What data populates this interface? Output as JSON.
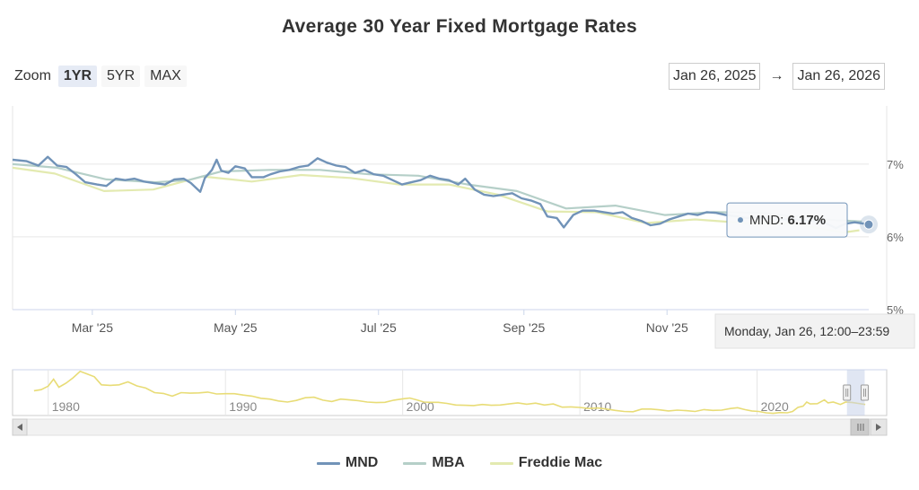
{
  "chart_data": {
    "type": "line",
    "title": "Average 30 Year Fixed Mortgage Rates",
    "zoom": {
      "label": "Zoom",
      "options": [
        "1YR",
        "5YR",
        "MAX"
      ],
      "selected": "1YR"
    },
    "range": {
      "from": "Jan 26, 2025",
      "arrow": "→",
      "to": "Jan 26, 2026"
    },
    "x_range": [
      "2025-01-26",
      "2026-01-26"
    ],
    "x_tick_labels": [
      "Mar '25",
      "May '25",
      "Jul '25",
      "Sep '25",
      "Nov '25"
    ],
    "x_ticks": [
      "2025-03-01",
      "2025-05-01",
      "2025-07-01",
      "2025-09-01",
      "2025-11-01"
    ],
    "ylim": [
      5,
      7.8
    ],
    "y_ticks": [
      5,
      6,
      7
    ],
    "y_tick_labels": [
      "5%",
      "6%",
      "7%"
    ],
    "series": [
      {
        "name": "MND",
        "color": "#7193b8",
        "points": [
          [
            "2025-01-26",
            7.06
          ],
          [
            "2025-02-01",
            7.04
          ],
          [
            "2025-02-06",
            6.98
          ],
          [
            "2025-02-10",
            7.1
          ],
          [
            "2025-02-14",
            6.98
          ],
          [
            "2025-02-18",
            6.96
          ],
          [
            "2025-02-22",
            6.86
          ],
          [
            "2025-02-26",
            6.75
          ],
          [
            "2025-03-03",
            6.72
          ],
          [
            "2025-03-07",
            6.7
          ],
          [
            "2025-03-11",
            6.8
          ],
          [
            "2025-03-15",
            6.78
          ],
          [
            "2025-03-19",
            6.8
          ],
          [
            "2025-03-23",
            6.76
          ],
          [
            "2025-03-27",
            6.74
          ],
          [
            "2025-04-01",
            6.72
          ],
          [
            "2025-04-05",
            6.79
          ],
          [
            "2025-04-09",
            6.8
          ],
          [
            "2025-04-12",
            6.74
          ],
          [
            "2025-04-16",
            6.62
          ],
          [
            "2025-04-18",
            6.81
          ],
          [
            "2025-04-21",
            6.92
          ],
          [
            "2025-04-23",
            7.06
          ],
          [
            "2025-04-25",
            6.91
          ],
          [
            "2025-04-28",
            6.88
          ],
          [
            "2025-05-01",
            6.97
          ],
          [
            "2025-05-05",
            6.94
          ],
          [
            "2025-05-08",
            6.82
          ],
          [
            "2025-05-13",
            6.82
          ],
          [
            "2025-05-16",
            6.86
          ],
          [
            "2025-05-20",
            6.9
          ],
          [
            "2025-05-24",
            6.92
          ],
          [
            "2025-05-28",
            6.96
          ],
          [
            "2025-06-01",
            6.98
          ],
          [
            "2025-06-05",
            7.08
          ],
          [
            "2025-06-09",
            7.02
          ],
          [
            "2025-06-13",
            6.98
          ],
          [
            "2025-06-17",
            6.96
          ],
          [
            "2025-06-21",
            6.88
          ],
          [
            "2025-06-25",
            6.92
          ],
          [
            "2025-06-29",
            6.86
          ],
          [
            "2025-07-03",
            6.84
          ],
          [
            "2025-07-07",
            6.78
          ],
          [
            "2025-07-11",
            6.72
          ],
          [
            "2025-07-15",
            6.75
          ],
          [
            "2025-07-19",
            6.78
          ],
          [
            "2025-07-23",
            6.84
          ],
          [
            "2025-07-27",
            6.8
          ],
          [
            "2025-07-31",
            6.78
          ],
          [
            "2025-08-04",
            6.72
          ],
          [
            "2025-08-07",
            6.8
          ],
          [
            "2025-08-11",
            6.65
          ],
          [
            "2025-08-15",
            6.58
          ],
          [
            "2025-08-19",
            6.56
          ],
          [
            "2025-08-23",
            6.58
          ],
          [
            "2025-08-27",
            6.6
          ],
          [
            "2025-08-31",
            6.53
          ],
          [
            "2025-09-04",
            6.5
          ],
          [
            "2025-09-08",
            6.45
          ],
          [
            "2025-09-11",
            6.28
          ],
          [
            "2025-09-15",
            6.26
          ],
          [
            "2025-09-18",
            6.13
          ],
          [
            "2025-09-22",
            6.3
          ],
          [
            "2025-09-26",
            6.36
          ],
          [
            "2025-10-01",
            6.36
          ],
          [
            "2025-10-05",
            6.34
          ],
          [
            "2025-10-09",
            6.32
          ],
          [
            "2025-10-13",
            6.34
          ],
          [
            "2025-10-17",
            6.26
          ],
          [
            "2025-10-21",
            6.22
          ],
          [
            "2025-10-25",
            6.16
          ],
          [
            "2025-10-29",
            6.18
          ],
          [
            "2025-11-02",
            6.24
          ],
          [
            "2025-11-06",
            6.28
          ],
          [
            "2025-11-10",
            6.32
          ],
          [
            "2025-11-14",
            6.3
          ],
          [
            "2025-11-18",
            6.34
          ],
          [
            "2025-11-22",
            6.33
          ],
          [
            "2025-11-26",
            6.3
          ],
          [
            "2025-12-01",
            6.28
          ],
          [
            "2025-12-05",
            6.26
          ],
          [
            "2025-12-10",
            6.27
          ],
          [
            "2025-12-15",
            6.25
          ],
          [
            "2025-12-20",
            6.24
          ],
          [
            "2025-12-26",
            6.24
          ],
          [
            "2026-01-01",
            6.22
          ],
          [
            "2026-01-07",
            6.2
          ],
          [
            "2026-01-12",
            6.12
          ],
          [
            "2026-01-16",
            6.18
          ],
          [
            "2026-01-20",
            6.2
          ],
          [
            "2026-01-26",
            6.17
          ]
        ]
      },
      {
        "name": "MBA",
        "color": "#b5cfc8",
        "points": [
          [
            "2025-01-26",
            7.0
          ],
          [
            "2025-02-14",
            6.95
          ],
          [
            "2025-03-07",
            6.79
          ],
          [
            "2025-03-28",
            6.75
          ],
          [
            "2025-04-11",
            6.78
          ],
          [
            "2025-04-25",
            6.9
          ],
          [
            "2025-05-16",
            6.92
          ],
          [
            "2025-06-06",
            6.92
          ],
          [
            "2025-06-27",
            6.86
          ],
          [
            "2025-07-18",
            6.84
          ],
          [
            "2025-08-08",
            6.72
          ],
          [
            "2025-08-29",
            6.63
          ],
          [
            "2025-09-19",
            6.39
          ],
          [
            "2025-10-10",
            6.43
          ],
          [
            "2025-10-31",
            6.3
          ],
          [
            "2025-11-21",
            6.34
          ],
          [
            "2025-12-12",
            6.33
          ],
          [
            "2026-01-02",
            6.25
          ],
          [
            "2026-01-23",
            6.21
          ]
        ]
      },
      {
        "name": "Freddie Mac",
        "color": "#e3eab0",
        "points": [
          [
            "2025-01-26",
            6.95
          ],
          [
            "2025-02-13",
            6.87
          ],
          [
            "2025-03-06",
            6.63
          ],
          [
            "2025-03-27",
            6.65
          ],
          [
            "2025-04-17",
            6.83
          ],
          [
            "2025-05-08",
            6.76
          ],
          [
            "2025-05-29",
            6.85
          ],
          [
            "2025-06-19",
            6.81
          ],
          [
            "2025-07-10",
            6.72
          ],
          [
            "2025-07-31",
            6.72
          ],
          [
            "2025-08-21",
            6.58
          ],
          [
            "2025-09-11",
            6.35
          ],
          [
            "2025-10-02",
            6.34
          ],
          [
            "2025-10-23",
            6.19
          ],
          [
            "2025-11-13",
            6.24
          ],
          [
            "2025-12-04",
            6.19
          ],
          [
            "2025-12-25",
            6.18
          ],
          [
            "2026-01-15",
            6.06
          ],
          [
            "2026-01-22",
            6.09
          ]
        ]
      }
    ],
    "tooltip": {
      "series": "MND",
      "label": "MND: ",
      "value": "6.17%"
    },
    "crosshair_label": "Monday, Jan 26, 12:00–23:59",
    "navigator": {
      "x_tick_labels": [
        "1980",
        "1990",
        "2000",
        "2010",
        "2020"
      ],
      "x_tick_years": [
        1980,
        1990,
        2000,
        2010,
        2020
      ],
      "x_range": [
        1979.0,
        2026.3
      ],
      "ylim": [
        2,
        19
      ],
      "series_color": "#e8dc76",
      "points": [
        [
          1979.2,
          11.2
        ],
        [
          1979.6,
          11.6
        ],
        [
          1980.0,
          12.9
        ],
        [
          1980.3,
          15.5
        ],
        [
          1980.6,
          12.5
        ],
        [
          1981.0,
          14.0
        ],
        [
          1981.4,
          16.0
        ],
        [
          1981.8,
          18.4
        ],
        [
          1982.2,
          17.4
        ],
        [
          1982.6,
          16.4
        ],
        [
          1983.0,
          13.4
        ],
        [
          1983.5,
          13.2
        ],
        [
          1984.0,
          13.4
        ],
        [
          1984.5,
          14.5
        ],
        [
          1985.0,
          13.0
        ],
        [
          1985.5,
          12.2
        ],
        [
          1986.0,
          10.5
        ],
        [
          1986.5,
          10.2
        ],
        [
          1987.0,
          9.2
        ],
        [
          1987.5,
          10.5
        ],
        [
          1988.0,
          10.3
        ],
        [
          1988.5,
          10.4
        ],
        [
          1989.0,
          10.7
        ],
        [
          1989.5,
          10.0
        ],
        [
          1990.0,
          10.1
        ],
        [
          1990.5,
          10.1
        ],
        [
          1991.0,
          9.6
        ],
        [
          1991.5,
          9.2
        ],
        [
          1992.0,
          8.4
        ],
        [
          1992.5,
          8.1
        ],
        [
          1993.0,
          7.4
        ],
        [
          1993.5,
          7.0
        ],
        [
          1994.0,
          7.6
        ],
        [
          1994.5,
          8.6
        ],
        [
          1995.0,
          8.8
        ],
        [
          1995.5,
          7.7
        ],
        [
          1996.0,
          7.2
        ],
        [
          1996.5,
          8.1
        ],
        [
          1997.0,
          7.8
        ],
        [
          1997.5,
          7.5
        ],
        [
          1998.0,
          7.0
        ],
        [
          1998.5,
          6.8
        ],
        [
          1999.0,
          6.9
        ],
        [
          1999.5,
          7.7
        ],
        [
          2000.0,
          8.2
        ],
        [
          2000.4,
          8.5
        ],
        [
          2000.8,
          7.8
        ],
        [
          2001.2,
          7.0
        ],
        [
          2001.6,
          6.9
        ],
        [
          2002.0,
          6.9
        ],
        [
          2002.5,
          6.5
        ],
        [
          2003.0,
          5.9
        ],
        [
          2003.5,
          5.8
        ],
        [
          2004.0,
          5.7
        ],
        [
          2004.5,
          6.1
        ],
        [
          2005.0,
          5.8
        ],
        [
          2005.5,
          5.9
        ],
        [
          2006.0,
          6.3
        ],
        [
          2006.5,
          6.7
        ],
        [
          2007.0,
          6.2
        ],
        [
          2007.5,
          6.6
        ],
        [
          2008.0,
          5.9
        ],
        [
          2008.5,
          6.3
        ],
        [
          2009.0,
          5.1
        ],
        [
          2009.5,
          5.2
        ],
        [
          2010.0,
          5.0
        ],
        [
          2010.5,
          4.6
        ],
        [
          2011.0,
          4.8
        ],
        [
          2011.5,
          4.4
        ],
        [
          2012.0,
          3.9
        ],
        [
          2012.5,
          3.5
        ],
        [
          2013.0,
          3.4
        ],
        [
          2013.5,
          4.4
        ],
        [
          2014.0,
          4.4
        ],
        [
          2014.5,
          4.1
        ],
        [
          2015.0,
          3.7
        ],
        [
          2015.5,
          4.0
        ],
        [
          2016.0,
          3.8
        ],
        [
          2016.5,
          3.5
        ],
        [
          2017.0,
          4.2
        ],
        [
          2017.5,
          3.9
        ],
        [
          2018.0,
          4.0
        ],
        [
          2018.5,
          4.6
        ],
        [
          2018.9,
          4.9
        ],
        [
          2019.3,
          4.2
        ],
        [
          2019.7,
          3.7
        ],
        [
          2020.1,
          3.5
        ],
        [
          2020.5,
          3.0
        ],
        [
          2020.9,
          2.8
        ],
        [
          2021.3,
          3.1
        ],
        [
          2021.7,
          3.0
        ],
        [
          2022.0,
          3.5
        ],
        [
          2022.3,
          5.0
        ],
        [
          2022.6,
          5.5
        ],
        [
          2022.8,
          7.0
        ],
        [
          2023.0,
          6.3
        ],
        [
          2023.4,
          6.4
        ],
        [
          2023.8,
          7.8
        ],
        [
          2024.0,
          6.7
        ],
        [
          2024.3,
          7.0
        ],
        [
          2024.7,
          6.1
        ],
        [
          2025.0,
          7.0
        ],
        [
          2025.4,
          6.8
        ],
        [
          2025.7,
          6.5
        ],
        [
          2026.1,
          6.1
        ]
      ],
      "selection": [
        2025.07,
        2026.07
      ]
    }
  },
  "legend": [
    {
      "label": "MND",
      "color": "#7193b8"
    },
    {
      "label": "MBA",
      "color": "#b5cfc8"
    },
    {
      "label": "Freddie Mac",
      "color": "#e3eab0"
    }
  ],
  "scrollbar": {
    "left_icon": "left-arrow-icon",
    "right_icon": "right-arrow-icon",
    "grip_icon": "grip-icon"
  }
}
